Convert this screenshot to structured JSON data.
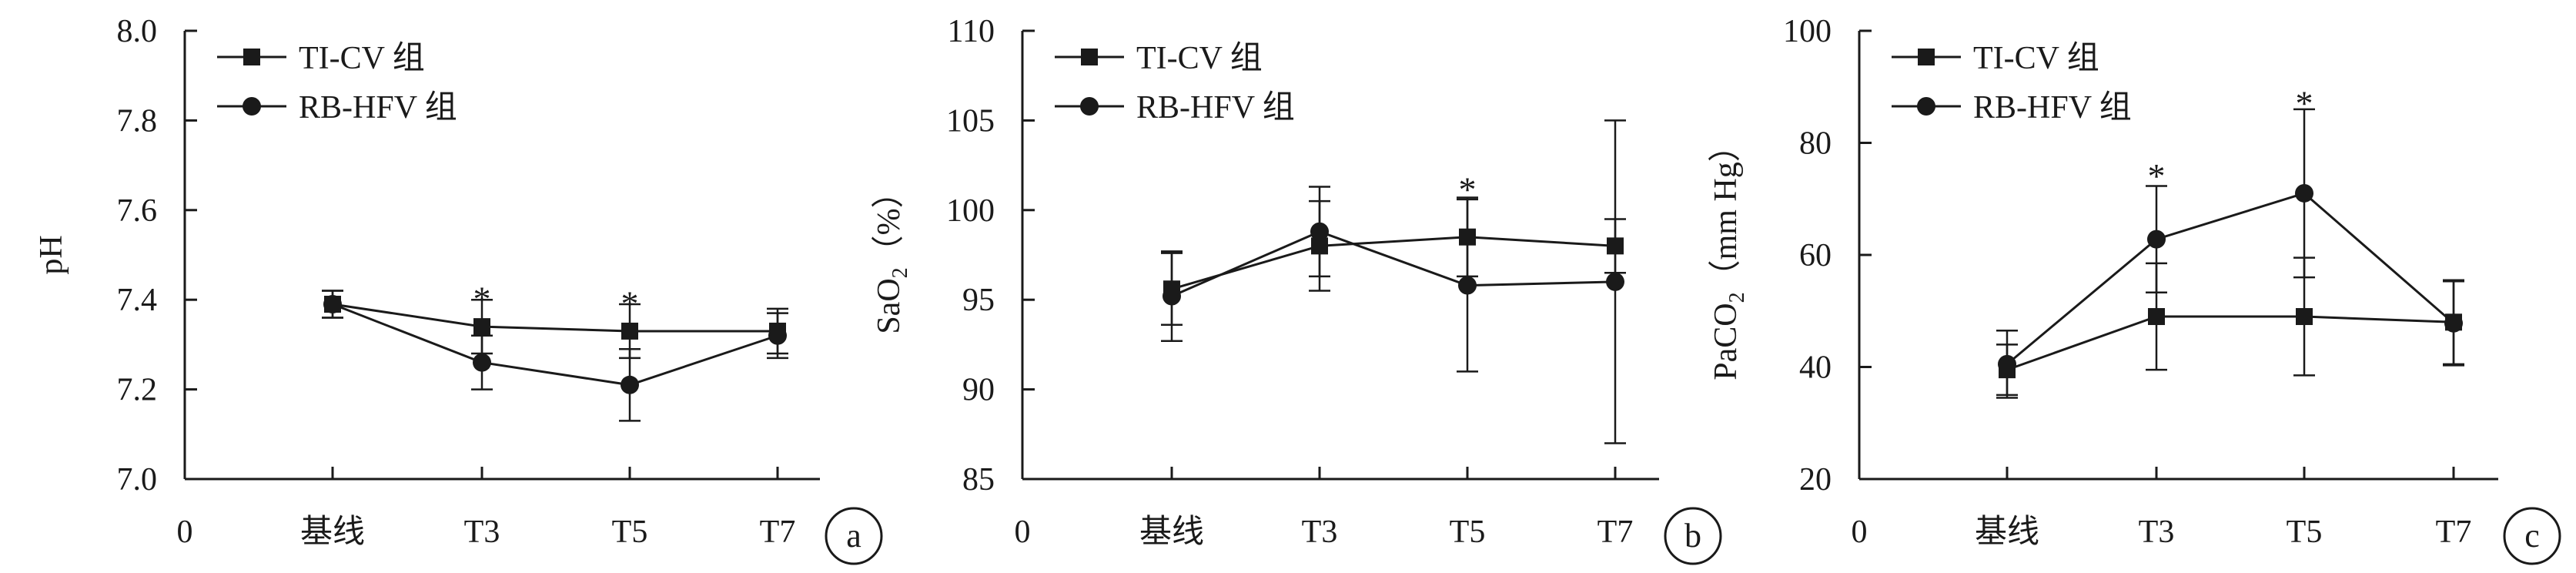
{
  "chart_data": [
    {
      "panel": "a",
      "type": "line",
      "categories": [
        "基线",
        "T3",
        "T5",
        "T7"
      ],
      "x_origin_label": "0",
      "ylabel": "pH",
      "ylabel_sub": "",
      "ylabel_tail": "",
      "ylim": [
        7.0,
        8.0
      ],
      "yticks": [
        7.0,
        7.2,
        7.4,
        7.6,
        7.8,
        8.0
      ],
      "ytick_labels": [
        "7.0",
        "7.2",
        "7.4",
        "7.6",
        "7.8",
        "8.0"
      ],
      "legend_position": "top-left",
      "grid": false,
      "series": [
        {
          "name": "TI-CV 组",
          "marker": "square",
          "values": [
            7.39,
            7.34,
            7.33,
            7.33
          ],
          "error": [
            0.03,
            0.06,
            0.06,
            0.05
          ]
        },
        {
          "name": "RB-HFV 组",
          "marker": "circle",
          "values": [
            7.39,
            7.26,
            7.21,
            7.32
          ],
          "error": [
            0.03,
            0.06,
            0.08,
            0.05
          ]
        }
      ],
      "annotations": [
        {
          "category": "T3",
          "text": "*",
          "y": 7.42
        },
        {
          "category": "T5",
          "text": "*",
          "y": 7.41
        }
      ]
    },
    {
      "panel": "b",
      "type": "line",
      "categories": [
        "基线",
        "T3",
        "T5",
        "T7"
      ],
      "x_origin_label": "0",
      "ylabel": "SaO",
      "ylabel_sub": "2",
      "ylabel_tail": "（%）",
      "ylim": [
        85,
        110
      ],
      "yticks": [
        85,
        90,
        95,
        100,
        105,
        110
      ],
      "ytick_labels": [
        "85",
        "90",
        "95",
        "100",
        "105",
        "110"
      ],
      "legend_position": "top-left",
      "grid": false,
      "series": [
        {
          "name": "TI-CV 组",
          "marker": "square",
          "values": [
            95.6,
            98.0,
            98.5,
            98.0
          ],
          "error": [
            2.0,
            2.5,
            2.2,
            1.5
          ]
        },
        {
          "name": "RB-HFV 组",
          "marker": "circle",
          "values": [
            95.2,
            98.8,
            95.8,
            96.0
          ],
          "error": [
            2.5,
            2.5,
            4.8,
            9.0
          ]
        }
      ],
      "annotations": [
        {
          "category": "T5",
          "text": "*",
          "y": 101.6
        }
      ]
    },
    {
      "panel": "c",
      "type": "line",
      "categories": [
        "基线",
        "T3",
        "T5",
        "T7"
      ],
      "x_origin_label": "0",
      "ylabel": "PaCO",
      "ylabel_sub": "2",
      "ylabel_tail": "（mm Hg）",
      "ylim": [
        20,
        100
      ],
      "yticks": [
        20,
        40,
        60,
        80,
        100
      ],
      "ytick_labels": [
        "20",
        "40",
        "60",
        "80",
        "100"
      ],
      "legend_position": "top-left",
      "grid": false,
      "series": [
        {
          "name": "TI-CV 组",
          "marker": "square",
          "values": [
            39.5,
            49.0,
            49.0,
            48.0
          ],
          "error": [
            4.5,
            9.5,
            10.5,
            7.5
          ]
        },
        {
          "name": "RB-HFV 组",
          "marker": "circle",
          "values": [
            40.5,
            62.8,
            71.0,
            47.8
          ],
          "error": [
            6.0,
            9.5,
            15.0,
            7.5
          ]
        }
      ],
      "annotations": [
        {
          "category": "T3",
          "text": "*",
          "y": 75.5
        },
        {
          "category": "T5",
          "text": "*",
          "y": 88.5
        }
      ]
    }
  ],
  "colors": {
    "ink": "#1a1a1a",
    "background": "#ffffff"
  }
}
